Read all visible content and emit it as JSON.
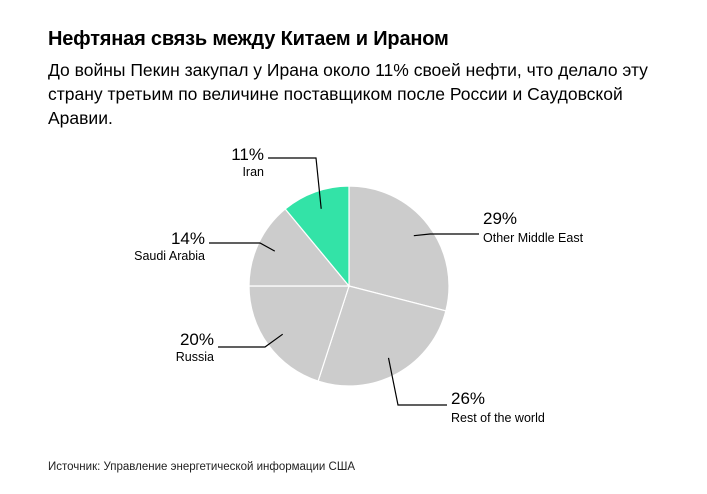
{
  "header": {
    "title": "Нефтяная связь между Китаем и Ираном",
    "subtitle": "До войны Пекин закупал у Ирана около 11% своей нефти, что делало эту страну третьим по величине поставщиком после России и Саудовской Аравии."
  },
  "source": "Источник: Управление энергетической информации США",
  "colors": {
    "highlight": "#33e3a7",
    "slice": "#cccccc",
    "stroke": "#ffffff",
    "leader": "#000000"
  },
  "chart_data": {
    "type": "pie",
    "title": "",
    "start_angle_deg": 0,
    "direction": "clockwise",
    "slices": [
      {
        "label": "Other Middle East",
        "value": 29,
        "value_label": "29%",
        "highlight": false
      },
      {
        "label": "Rest of the world",
        "value": 26,
        "value_label": "26%",
        "highlight": false
      },
      {
        "label": "Russia",
        "value": 20,
        "value_label": "20%",
        "highlight": false
      },
      {
        "label": "Saudi Arabia",
        "value": 14,
        "value_label": "14%",
        "highlight": false
      },
      {
        "label": "Iran",
        "value": 11,
        "value_label": "11%",
        "highlight": true
      }
    ]
  }
}
